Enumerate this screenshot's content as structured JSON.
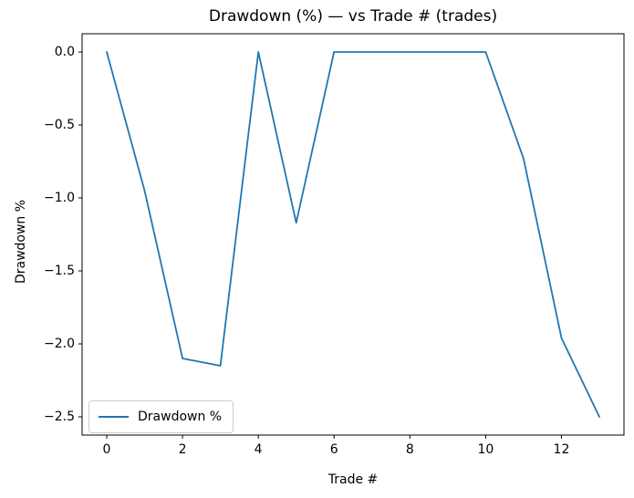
{
  "chart_data": {
    "type": "line",
    "title": "Drawdown (%) — vs Trade # (trades)",
    "xlabel": "Trade #",
    "ylabel": "Drawdown %",
    "series": [
      {
        "name": "Drawdown %",
        "color": "#1f77b4",
        "x": [
          0,
          1,
          2,
          3,
          4,
          5,
          6,
          7,
          8,
          9,
          10,
          11,
          12,
          13
        ],
        "y": [
          0.0,
          -0.95,
          -2.1,
          -2.15,
          0.0,
          -1.17,
          0.0,
          0.0,
          0.0,
          0.0,
          0.0,
          -0.73,
          -1.96,
          -2.5
        ]
      }
    ],
    "xlim": [
      -0.65,
      13.65
    ],
    "ylim": [
      -2.625,
      0.125
    ],
    "xticks": [
      0,
      2,
      4,
      6,
      8,
      10,
      12
    ],
    "xtick_labels": [
      "0",
      "2",
      "4",
      "6",
      "8",
      "10",
      "12"
    ],
    "yticks": [
      0.0,
      -0.5,
      -1.0,
      -1.5,
      -2.0,
      -2.5
    ],
    "ytick_labels": [
      "0.0",
      "−0.5",
      "−1.0",
      "−1.5",
      "−2.0",
      "−2.5"
    ],
    "grid": false,
    "legend_position": "lower left",
    "legend_label": "Drawdown %",
    "colors": {
      "line": "#1f77b4",
      "spine": "#000000",
      "background": "#ffffff",
      "legend_border": "#cccccc"
    }
  }
}
